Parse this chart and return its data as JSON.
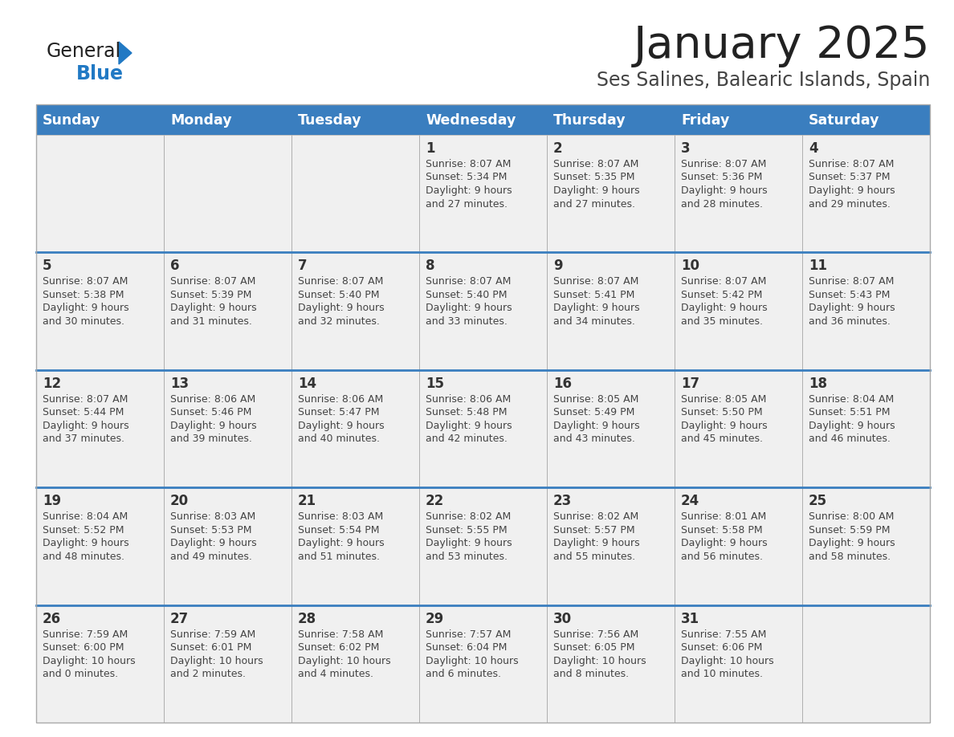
{
  "title": "January 2025",
  "subtitle": "Ses Salines, Balearic Islands, Spain",
  "header_bg_color": "#3a7ebf",
  "header_text_color": "#ffffff",
  "cell_bg_color_light": "#f0f0f0",
  "separator_color": "#3a7ebf",
  "border_color": "#aaaaaa",
  "day_number_color": "#333333",
  "info_text_color": "#444444",
  "title_color": "#222222",
  "subtitle_color": "#444444",
  "days_of_week": [
    "Sunday",
    "Monday",
    "Tuesday",
    "Wednesday",
    "Thursday",
    "Friday",
    "Saturday"
  ],
  "weeks": [
    {
      "days": [
        {
          "day": "",
          "sunrise": "",
          "sunset": "",
          "daylight_h": "",
          "daylight_m": ""
        },
        {
          "day": "",
          "sunrise": "",
          "sunset": "",
          "daylight_h": "",
          "daylight_m": ""
        },
        {
          "day": "",
          "sunrise": "",
          "sunset": "",
          "daylight_h": "",
          "daylight_m": ""
        },
        {
          "day": "1",
          "sunrise": "8:07 AM",
          "sunset": "5:34 PM",
          "daylight_h": "9 hours",
          "daylight_m": "and 27 minutes."
        },
        {
          "day": "2",
          "sunrise": "8:07 AM",
          "sunset": "5:35 PM",
          "daylight_h": "9 hours",
          "daylight_m": "and 27 minutes."
        },
        {
          "day": "3",
          "sunrise": "8:07 AM",
          "sunset": "5:36 PM",
          "daylight_h": "9 hours",
          "daylight_m": "and 28 minutes."
        },
        {
          "day": "4",
          "sunrise": "8:07 AM",
          "sunset": "5:37 PM",
          "daylight_h": "9 hours",
          "daylight_m": "and 29 minutes."
        }
      ]
    },
    {
      "days": [
        {
          "day": "5",
          "sunrise": "8:07 AM",
          "sunset": "5:38 PM",
          "daylight_h": "9 hours",
          "daylight_m": "and 30 minutes."
        },
        {
          "day": "6",
          "sunrise": "8:07 AM",
          "sunset": "5:39 PM",
          "daylight_h": "9 hours",
          "daylight_m": "and 31 minutes."
        },
        {
          "day": "7",
          "sunrise": "8:07 AM",
          "sunset": "5:40 PM",
          "daylight_h": "9 hours",
          "daylight_m": "and 32 minutes."
        },
        {
          "day": "8",
          "sunrise": "8:07 AM",
          "sunset": "5:40 PM",
          "daylight_h": "9 hours",
          "daylight_m": "and 33 minutes."
        },
        {
          "day": "9",
          "sunrise": "8:07 AM",
          "sunset": "5:41 PM",
          "daylight_h": "9 hours",
          "daylight_m": "and 34 minutes."
        },
        {
          "day": "10",
          "sunrise": "8:07 AM",
          "sunset": "5:42 PM",
          "daylight_h": "9 hours",
          "daylight_m": "and 35 minutes."
        },
        {
          "day": "11",
          "sunrise": "8:07 AM",
          "sunset": "5:43 PM",
          "daylight_h": "9 hours",
          "daylight_m": "and 36 minutes."
        }
      ]
    },
    {
      "days": [
        {
          "day": "12",
          "sunrise": "8:07 AM",
          "sunset": "5:44 PM",
          "daylight_h": "9 hours",
          "daylight_m": "and 37 minutes."
        },
        {
          "day": "13",
          "sunrise": "8:06 AM",
          "sunset": "5:46 PM",
          "daylight_h": "9 hours",
          "daylight_m": "and 39 minutes."
        },
        {
          "day": "14",
          "sunrise": "8:06 AM",
          "sunset": "5:47 PM",
          "daylight_h": "9 hours",
          "daylight_m": "and 40 minutes."
        },
        {
          "day": "15",
          "sunrise": "8:06 AM",
          "sunset": "5:48 PM",
          "daylight_h": "9 hours",
          "daylight_m": "and 42 minutes."
        },
        {
          "day": "16",
          "sunrise": "8:05 AM",
          "sunset": "5:49 PM",
          "daylight_h": "9 hours",
          "daylight_m": "and 43 minutes."
        },
        {
          "day": "17",
          "sunrise": "8:05 AM",
          "sunset": "5:50 PM",
          "daylight_h": "9 hours",
          "daylight_m": "and 45 minutes."
        },
        {
          "day": "18",
          "sunrise": "8:04 AM",
          "sunset": "5:51 PM",
          "daylight_h": "9 hours",
          "daylight_m": "and 46 minutes."
        }
      ]
    },
    {
      "days": [
        {
          "day": "19",
          "sunrise": "8:04 AM",
          "sunset": "5:52 PM",
          "daylight_h": "9 hours",
          "daylight_m": "and 48 minutes."
        },
        {
          "day": "20",
          "sunrise": "8:03 AM",
          "sunset": "5:53 PM",
          "daylight_h": "9 hours",
          "daylight_m": "and 49 minutes."
        },
        {
          "day": "21",
          "sunrise": "8:03 AM",
          "sunset": "5:54 PM",
          "daylight_h": "9 hours",
          "daylight_m": "and 51 minutes."
        },
        {
          "day": "22",
          "sunrise": "8:02 AM",
          "sunset": "5:55 PM",
          "daylight_h": "9 hours",
          "daylight_m": "and 53 minutes."
        },
        {
          "day": "23",
          "sunrise": "8:02 AM",
          "sunset": "5:57 PM",
          "daylight_h": "9 hours",
          "daylight_m": "and 55 minutes."
        },
        {
          "day": "24",
          "sunrise": "8:01 AM",
          "sunset": "5:58 PM",
          "daylight_h": "9 hours",
          "daylight_m": "and 56 minutes."
        },
        {
          "day": "25",
          "sunrise": "8:00 AM",
          "sunset": "5:59 PM",
          "daylight_h": "9 hours",
          "daylight_m": "and 58 minutes."
        }
      ]
    },
    {
      "days": [
        {
          "day": "26",
          "sunrise": "7:59 AM",
          "sunset": "6:00 PM",
          "daylight_h": "10 hours",
          "daylight_m": "and 0 minutes."
        },
        {
          "day": "27",
          "sunrise": "7:59 AM",
          "sunset": "6:01 PM",
          "daylight_h": "10 hours",
          "daylight_m": "and 2 minutes."
        },
        {
          "day": "28",
          "sunrise": "7:58 AM",
          "sunset": "6:02 PM",
          "daylight_h": "10 hours",
          "daylight_m": "and 4 minutes."
        },
        {
          "day": "29",
          "sunrise": "7:57 AM",
          "sunset": "6:04 PM",
          "daylight_h": "10 hours",
          "daylight_m": "and 6 minutes."
        },
        {
          "day": "30",
          "sunrise": "7:56 AM",
          "sunset": "6:05 PM",
          "daylight_h": "10 hours",
          "daylight_m": "and 8 minutes."
        },
        {
          "day": "31",
          "sunrise": "7:55 AM",
          "sunset": "6:06 PM",
          "daylight_h": "10 hours",
          "daylight_m": "and 10 minutes."
        },
        {
          "day": "",
          "sunrise": "",
          "sunset": "",
          "daylight_h": "",
          "daylight_m": ""
        }
      ]
    }
  ]
}
